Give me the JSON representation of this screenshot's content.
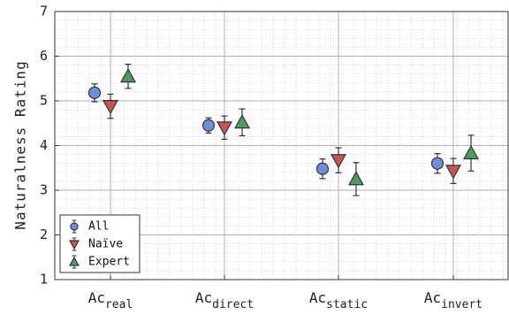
{
  "chart_data": {
    "type": "scatter",
    "ylabel": "Naturalness Rating",
    "xlabel": "",
    "ylim": [
      1,
      7
    ],
    "yticks": [
      "1",
      "2",
      "3",
      "4",
      "5",
      "6",
      "7"
    ],
    "grid": true,
    "legend_position": "bottom-left",
    "categories": [
      {
        "main": "Ac",
        "sub": "real"
      },
      {
        "main": "Ac",
        "sub": "direct"
      },
      {
        "main": "Ac",
        "sub": "static"
      },
      {
        "main": "Ac",
        "sub": "invert"
      }
    ],
    "series": [
      {
        "name": "All",
        "marker": "circle",
        "color": "#6f8fd8",
        "values": [
          5.18,
          4.45,
          3.48,
          3.6
        ],
        "errors": [
          0.2,
          0.17,
          0.22,
          0.22
        ]
      },
      {
        "name": "Naïve",
        "marker": "triangle-down",
        "color": "#c95454",
        "values": [
          4.88,
          4.4,
          3.67,
          3.43
        ],
        "errors": [
          0.27,
          0.26,
          0.28,
          0.28
        ]
      },
      {
        "name": "Expert",
        "marker": "triangle-up",
        "color": "#4f9a62",
        "values": [
          5.55,
          4.52,
          3.25,
          3.83
        ],
        "errors": [
          0.27,
          0.3,
          0.37,
          0.4
        ]
      }
    ]
  }
}
